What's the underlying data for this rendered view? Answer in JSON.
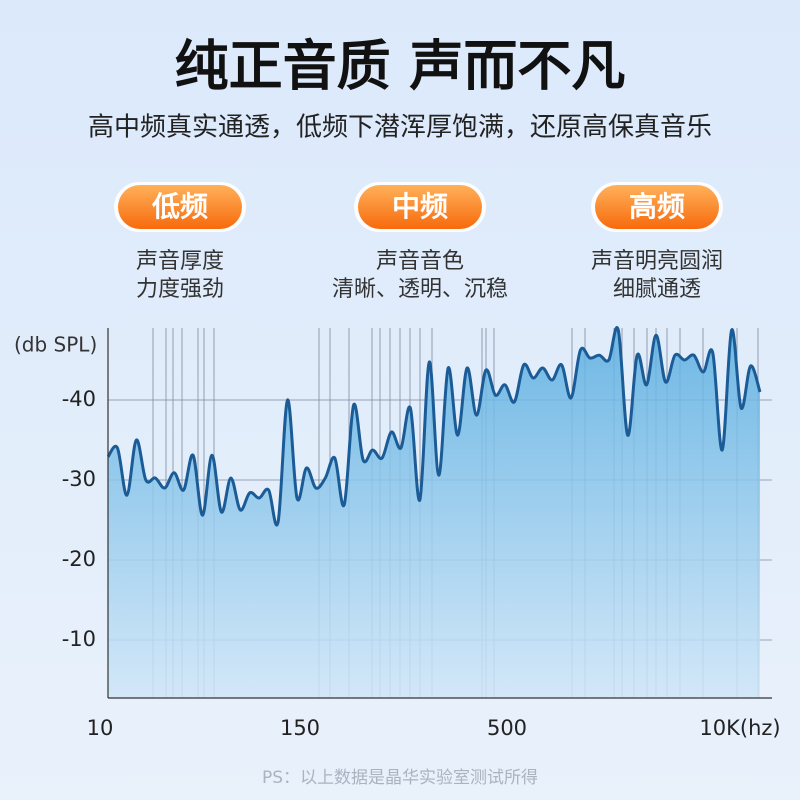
{
  "header": {
    "title": "纯正音质 声而不凡",
    "subtitle": "高中频真实通透，低频下潜浑厚饱满，还原高保真音乐"
  },
  "features": [
    {
      "label": "低频",
      "lines": [
        "声音厚度",
        "力度强劲"
      ]
    },
    {
      "label": "中频",
      "lines": [
        "声音音色",
        "清晰、透明、沉稳"
      ]
    },
    {
      "label": "高频",
      "lines": [
        "声音明亮圆润",
        "细腻通透"
      ]
    }
  ],
  "chart_data": {
    "type": "line",
    "ylabel": "(db SPL)",
    "xtick_labels": [
      "10",
      "150",
      "500",
      "10K(hz)"
    ],
    "ylim": [
      -2.75,
      -49
    ],
    "yticks": [
      -40,
      -30,
      -20,
      -10
    ],
    "grid": true,
    "series": [
      {
        "color": "#1b5c97",
        "values": [
          -32.9,
          -34,
          -28.1,
          -35,
          -30,
          -30.25,
          -29,
          -30.9,
          -28.75,
          -33.1,
          -25.6,
          -33.1,
          -26,
          -30.25,
          -26.25,
          -28.4,
          -27.75,
          -28.75,
          -24.75,
          -40,
          -27.75,
          -31.5,
          -29,
          -30.25,
          -32.75,
          -26.9,
          -39.4,
          -32.5,
          -33.75,
          -32.75,
          -36,
          -34,
          -39,
          -27.5,
          -44.75,
          -30.6,
          -44,
          -35.6,
          -44,
          -38.1,
          -43.75,
          -40.6,
          -41.9,
          -39.75,
          -44.4,
          -42.75,
          -44,
          -42.5,
          -44.4,
          -40.25,
          -46.25,
          -45.25,
          -45.6,
          -45,
          -48.75,
          -35.6,
          -45.6,
          -41.9,
          -48.1,
          -42.25,
          -45.6,
          -45,
          -45.6,
          -43.5,
          -45.9,
          -33.75,
          -48.75,
          -39,
          -44.25,
          -41
        ]
      }
    ]
  },
  "note": "PS：以上数据是晶华实验室测试所得"
}
